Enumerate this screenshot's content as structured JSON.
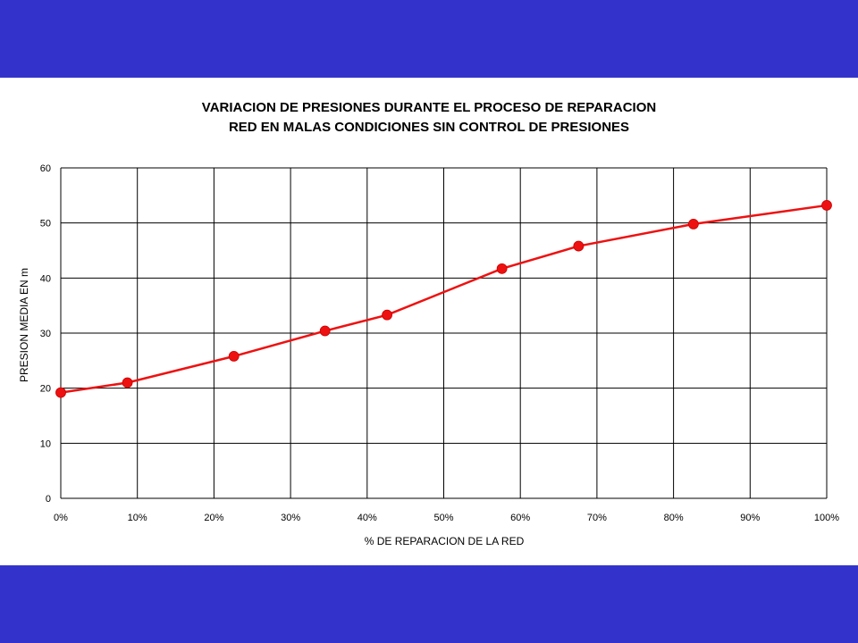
{
  "chart_data": {
    "type": "line",
    "title": [
      "VARIACION DE PRESIONES DURANTE EL PROCESO DE REPARACION",
      "RED EN MALAS CONDICIONES SIN CONTROL DE PRESIONES"
    ],
    "xlabel": "% DE REPARACION DE LA RED",
    "ylabel": "PRESION MEDIA EN m",
    "xlim": [
      0,
      100
    ],
    "ylim": [
      0,
      60
    ],
    "x_ticks": [
      0,
      10,
      20,
      30,
      40,
      50,
      60,
      70,
      80,
      90,
      100
    ],
    "x_tick_labels": [
      "0%",
      "10%",
      "20%",
      "30%",
      "40%",
      "50%",
      "60%",
      "70%",
      "80%",
      "90%",
      "100%"
    ],
    "y_ticks": [
      0,
      10,
      20,
      30,
      40,
      50,
      60
    ],
    "y_tick_labels": [
      "0",
      "10",
      "20",
      "30",
      "40",
      "50",
      "60"
    ],
    "grid": true,
    "legend": "none",
    "series": [
      {
        "color": "#ee1111",
        "marker": "circle",
        "x": [
          0,
          8.7,
          22.6,
          34.5,
          42.6,
          57.6,
          67.6,
          82.6,
          100
        ],
        "y": [
          19.2,
          21.0,
          25.8,
          30.4,
          33.3,
          41.7,
          45.8,
          49.8,
          53.2
        ]
      }
    ]
  },
  "colors": {
    "band": "#3333cc",
    "grid": "#000000",
    "series": "#ee1111"
  }
}
